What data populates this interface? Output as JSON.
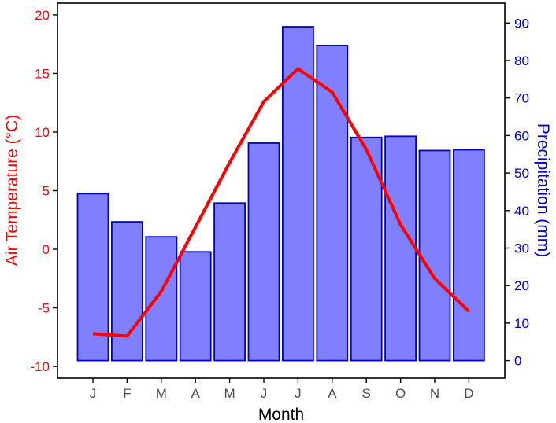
{
  "chart_data": {
    "type": "bar",
    "categories": [
      "J",
      "F",
      "M",
      "A",
      "M",
      "J",
      "J",
      "A",
      "S",
      "O",
      "N",
      "D"
    ],
    "xlabel": "Month",
    "series": [
      {
        "name": "Precipitation (mm)",
        "type": "bar",
        "axis": "right",
        "values": [
          44.5,
          37,
          33,
          29,
          42,
          58,
          89,
          84,
          59.5,
          59.8,
          56,
          56.2
        ]
      },
      {
        "name": "Air Temperature (°C)",
        "type": "line",
        "axis": "left",
        "values": [
          -7.2,
          -7.4,
          -3.6,
          1.9,
          7.4,
          12.6,
          15.4,
          13.4,
          8.5,
          2.1,
          -2.5,
          -5.3
        ]
      }
    ],
    "y_left": {
      "label": "Air Temperature (°C)",
      "ylim": [
        -11,
        21
      ],
      "ticks": [
        "-10",
        "-5",
        "0",
        "5",
        "10",
        "15",
        "20"
      ]
    },
    "y_right": {
      "label": "Precipitation (mm)",
      "ylim": [
        -4.7,
        95.3
      ],
      "ticks": [
        "0",
        "10",
        "20",
        "30",
        "40",
        "50",
        "60",
        "70",
        "80",
        "90"
      ]
    },
    "grid": false,
    "legend": "none",
    "colors": {
      "bar_fill": "#8080ff",
      "bar_stroke": "#0000cc",
      "line": "#ff0000",
      "left_axis_text": "#ff0000",
      "right_axis_text": "#0000cc",
      "x_axis_text": "#4d4d4d"
    }
  }
}
